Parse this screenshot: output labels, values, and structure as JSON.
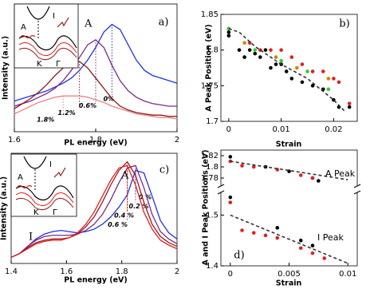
{
  "chart_data": [
    {
      "type": "line",
      "label": "a)",
      "peak_label": "A",
      "xlabel": "PL energy (eV)",
      "ylabel": "Intensity (a.u.)",
      "xlim": [
        1.6,
        2.0
      ],
      "xticks": [
        1.6,
        1.8,
        2
      ],
      "ylim": [
        0,
        1
      ],
      "inset": {
        "labels": [
          "A",
          "I",
          "K",
          "Γ"
        ]
      },
      "x": [
        1.6,
        1.62,
        1.64,
        1.66,
        1.68,
        1.7,
        1.72,
        1.74,
        1.76,
        1.78,
        1.8,
        1.82,
        1.84,
        1.86,
        1.88,
        1.9,
        1.92,
        1.94,
        1.96,
        1.98,
        2.0
      ],
      "series": [
        {
          "name": "0%",
          "color": "#2233dd",
          "values": [
            0.24,
            0.26,
            0.28,
            0.3,
            0.32,
            0.35,
            0.38,
            0.42,
            0.48,
            0.56,
            0.66,
            0.78,
            0.84,
            0.8,
            0.68,
            0.56,
            0.48,
            0.44,
            0.42,
            0.4,
            0.38
          ]
        },
        {
          "name": "0.6%",
          "color": "#7a2a8a",
          "values": [
            0.2,
            0.22,
            0.24,
            0.27,
            0.3,
            0.34,
            0.4,
            0.48,
            0.58,
            0.68,
            0.72,
            0.66,
            0.52,
            0.4,
            0.32,
            0.27,
            0.24,
            0.22,
            0.21,
            0.2,
            0.2
          ]
        },
        {
          "name": "1.2%",
          "color": "#8b1a1a",
          "values": [
            0.18,
            0.22,
            0.26,
            0.31,
            0.37,
            0.44,
            0.5,
            0.54,
            0.55,
            0.5,
            0.42,
            0.34,
            0.26,
            0.2,
            0.17,
            0.15,
            0.14,
            0.13,
            0.13,
            0.12,
            0.12
          ]
        },
        {
          "name": "1.8%",
          "color": "#f08080",
          "values": [
            0.14,
            0.17,
            0.2,
            0.23,
            0.25,
            0.27,
            0.28,
            0.28,
            0.28,
            0.27,
            0.25,
            0.23,
            0.2,
            0.18,
            0.16,
            0.14,
            0.13,
            0.12,
            0.11,
            0.11,
            0.1
          ]
        }
      ]
    },
    {
      "type": "scatter",
      "label": "b)",
      "xlabel": "Strain",
      "ylabel": "A Peak Position (eV)",
      "xlim": [
        -0.0015,
        0.0245
      ],
      "xticks": [
        0,
        0.01,
        0.02
      ],
      "ylim": [
        1.7,
        1.85
      ],
      "yticks": [
        1.7,
        1.75,
        1.8,
        1.85
      ],
      "series": [
        {
          "color": "#000000",
          "x": [
            0,
            0,
            0.002,
            0.003,
            0.004,
            0.005,
            0.006,
            0.007,
            0.008,
            0.009,
            0.01,
            0.011,
            0.012,
            0.014,
            0.016,
            0.018,
            0.02,
            0.021,
            0.023
          ],
          "values": [
            1.825,
            1.82,
            1.8,
            1.79,
            1.8,
            1.795,
            1.79,
            1.8,
            1.775,
            1.78,
            1.78,
            1.77,
            1.76,
            1.755,
            1.75,
            1.745,
            1.73,
            1.72,
            1.72
          ]
        },
        {
          "color": "#e02020",
          "x": [
            0,
            0.004,
            0.006,
            0.008,
            0.01,
            0.012,
            0.014,
            0.016,
            0.018,
            0.02,
            0.021,
            0.023
          ],
          "values": [
            1.83,
            1.81,
            1.8,
            1.8,
            1.8,
            1.79,
            1.78,
            1.77,
            1.77,
            1.76,
            1.755,
            1.725
          ]
        },
        {
          "color": "#33cc33",
          "x": [
            0,
            0.005,
            0.01,
            0.015,
            0.019
          ],
          "values": [
            1.83,
            1.8,
            1.785,
            1.77,
            1.745
          ]
        },
        {
          "color": "#cc8800",
          "x": [
            0.003,
            0.009,
            0.013,
            0.019
          ],
          "values": [
            1.81,
            1.79,
            1.775,
            1.76
          ]
        },
        {
          "color": "#333333",
          "style": "dashed",
          "x": [
            0,
            0.002,
            0.005,
            0.01,
            0.015,
            0.02,
            0.022
          ],
          "values": [
            1.83,
            1.825,
            1.805,
            1.78,
            1.76,
            1.73,
            1.715
          ]
        }
      ]
    },
    {
      "type": "line",
      "label": "c)",
      "peak_label": "A",
      "band_label": "I",
      "xlabel": "PL energy (eV)",
      "ylabel": "Intensity (a.u.)",
      "xlim": [
        1.4,
        2.0
      ],
      "xticks": [
        1.4,
        1.6,
        1.8,
        2
      ],
      "ylim": [
        0,
        0.9
      ],
      "inset": {
        "labels": [
          "A",
          "I",
          "K",
          "Γ"
        ]
      },
      "x": [
        1.4,
        1.43,
        1.46,
        1.49,
        1.52,
        1.55,
        1.58,
        1.61,
        1.64,
        1.67,
        1.7,
        1.73,
        1.76,
        1.79,
        1.82,
        1.85,
        1.88,
        1.91,
        1.94,
        1.97,
        2.0
      ],
      "series": [
        {
          "name": "0 %",
          "color": "#2233dd",
          "values": [
            0.05,
            0.08,
            0.14,
            0.2,
            0.24,
            0.26,
            0.27,
            0.26,
            0.25,
            0.26,
            0.28,
            0.32,
            0.38,
            0.46,
            0.56,
            0.76,
            0.74,
            0.55,
            0.35,
            0.25,
            0.2
          ]
        },
        {
          "name": "0.2 %",
          "color": "#7a2a8a",
          "values": [
            0.05,
            0.08,
            0.14,
            0.19,
            0.22,
            0.23,
            0.23,
            0.23,
            0.24,
            0.27,
            0.32,
            0.4,
            0.52,
            0.66,
            0.78,
            0.8,
            0.62,
            0.4,
            0.26,
            0.2,
            0.16
          ]
        },
        {
          "name": "0.4 %",
          "color": "#a01818",
          "values": [
            0.05,
            0.08,
            0.13,
            0.17,
            0.19,
            0.2,
            0.2,
            0.21,
            0.24,
            0.3,
            0.38,
            0.5,
            0.64,
            0.76,
            0.83,
            0.72,
            0.5,
            0.32,
            0.22,
            0.17,
            0.14
          ]
        },
        {
          "name": "0.6 %",
          "color": "#e02020",
          "values": [
            0.05,
            0.08,
            0.12,
            0.16,
            0.18,
            0.19,
            0.19,
            0.21,
            0.25,
            0.32,
            0.42,
            0.55,
            0.68,
            0.78,
            0.8,
            0.64,
            0.42,
            0.28,
            0.19,
            0.15,
            0.12
          ]
        }
      ]
    },
    {
      "type": "broken-scatter",
      "label": "d)",
      "xlabel": "Strain",
      "ylabel": "A and I Peak Positions (eV)",
      "xlim": [
        -0.0008,
        0.0108
      ],
      "xticks": [
        0,
        0.005,
        0.01
      ],
      "axes": [
        {
          "annotation": "A Peak",
          "ylim": [
            1.77,
            1.83
          ],
          "yticks": [
            1.78,
            1.8,
            1.82
          ],
          "series": [
            {
              "color": "#000000",
              "x": [
                0,
                0.003,
                0.005,
                0.007,
                0.0075
              ],
              "values": [
                1.818,
                1.8,
                1.792,
                1.78,
                1.775
              ]
            },
            {
              "color": "#e02020",
              "x": [
                0,
                0.001,
                0.002,
                0.004,
                0.006,
                0.007
              ],
              "values": [
                1.81,
                1.802,
                1.8,
                1.795,
                1.785,
                1.78
              ]
            },
            {
              "color": "#333333",
              "style": "dashed",
              "x": [
                0,
                0.01
              ],
              "values": [
                1.81,
                1.777
              ]
            }
          ]
        },
        {
          "annotation": "I Peak",
          "ylim": [
            1.4,
            1.54
          ],
          "yticks": [
            1.4,
            1.5
          ],
          "series": [
            {
              "color": "#000000",
              "x": [
                0,
                0.004,
                0.006,
                0.007
              ],
              "values": [
                1.535,
                1.475,
                1.45,
                1.44
              ]
            },
            {
              "color": "#e02020",
              "x": [
                0,
                0.001,
                0.002,
                0.003,
                0.004,
                0.006,
                0.007,
                0.008
              ],
              "values": [
                1.525,
                1.47,
                1.465,
                1.46,
                1.455,
                1.435,
                1.425,
                1.415
              ]
            },
            {
              "color": "#333333",
              "style": "dashed",
              "x": [
                0,
                0.01
              ],
              "values": [
                1.5,
                1.405
              ]
            }
          ]
        }
      ]
    }
  ]
}
